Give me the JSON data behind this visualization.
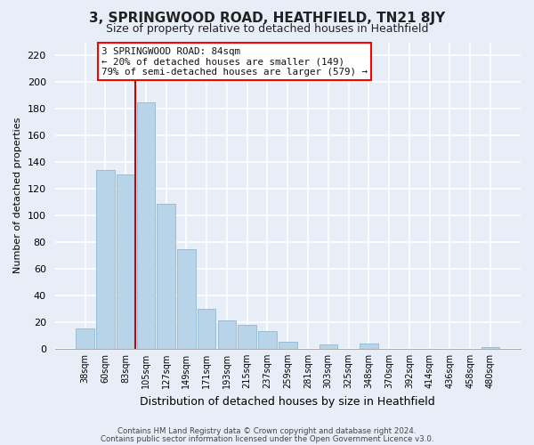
{
  "title": "3, SPRINGWOOD ROAD, HEATHFIELD, TN21 8JY",
  "subtitle": "Size of property relative to detached houses in Heathfield",
  "xlabel": "Distribution of detached houses by size in Heathfield",
  "ylabel": "Number of detached properties",
  "bar_labels": [
    "38sqm",
    "60sqm",
    "83sqm",
    "105sqm",
    "127sqm",
    "149sqm",
    "171sqm",
    "193sqm",
    "215sqm",
    "237sqm",
    "259sqm",
    "281sqm",
    "303sqm",
    "325sqm",
    "348sqm",
    "370sqm",
    "392sqm",
    "414sqm",
    "436sqm",
    "458sqm",
    "480sqm"
  ],
  "bar_heights": [
    15,
    134,
    131,
    185,
    109,
    75,
    30,
    21,
    18,
    13,
    5,
    0,
    3,
    0,
    4,
    0,
    0,
    0,
    0,
    0,
    1
  ],
  "bar_color": "#b8d4e8",
  "bar_edge_color": "#90b8d0",
  "red_line_color": "#cc0000",
  "red_line_x": 2.5,
  "ylim": [
    0,
    230
  ],
  "yticks": [
    0,
    20,
    40,
    60,
    80,
    100,
    120,
    140,
    160,
    180,
    200,
    220
  ],
  "annotation_title": "3 SPRINGWOOD ROAD: 84sqm",
  "annotation_line1": "← 20% of detached houses are smaller (149)",
  "annotation_line2": "79% of semi-detached houses are larger (579) →",
  "footer_line1": "Contains HM Land Registry data © Crown copyright and database right 2024.",
  "footer_line2": "Contains public sector information licensed under the Open Government Licence v3.0.",
  "background_color": "#e8eef8",
  "plot_bg_color": "#e8eef8",
  "grid_color": "#ffffff",
  "title_fontsize": 11,
  "subtitle_fontsize": 9,
  "xlabel_fontsize": 9,
  "ylabel_fontsize": 8,
  "tick_fontsize": 8,
  "xtick_fontsize": 7
}
